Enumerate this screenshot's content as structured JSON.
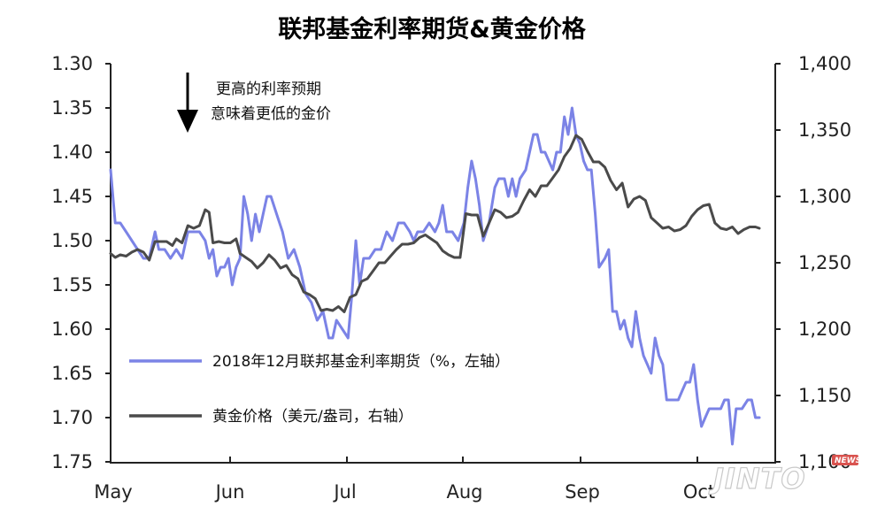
{
  "chart_data": {
    "type": "line",
    "title": "联邦基金利率期货&黄金价格",
    "annotation": [
      "更高的利率预期",
      "意味着更低的金价"
    ],
    "x_tick_labels": [
      "May",
      "Jun",
      "Jul",
      "Aug",
      "Sep",
      "Oct"
    ],
    "left_axis": {
      "range": [
        1.3,
        1.75
      ],
      "inverted": true,
      "tick_values": [
        1.3,
        1.35,
        1.4,
        1.45,
        1.5,
        1.55,
        1.6,
        1.65,
        1.7,
        1.75
      ],
      "tick_labels": [
        "1.30",
        "1.35",
        "1.40",
        "1.45",
        "1.50",
        "1.55",
        "1.60",
        "1.65",
        "1.70",
        "1.75"
      ]
    },
    "right_axis": {
      "range": [
        1100,
        1400
      ],
      "tick_values": [
        1100,
        1150,
        1200,
        1250,
        1300,
        1350,
        1400
      ],
      "tick_labels": [
        "1,100",
        "1,150",
        "1,200",
        "1,250",
        "1,300",
        "1,350",
        "1,400"
      ]
    },
    "grid": false,
    "legend_placement": "bottom-left",
    "series": [
      {
        "name": "2018年12月联邦基金利率期货（%，左轴）",
        "axis": "left",
        "color": "#7b83e6",
        "points": [
          [
            0.0,
            1.42
          ],
          [
            1.2,
            1.48
          ],
          [
            2.5,
            1.48
          ],
          [
            4.0,
            1.49
          ],
          [
            5.5,
            1.5
          ],
          [
            7.0,
            1.51
          ],
          [
            8.5,
            1.52
          ],
          [
            10.0,
            1.52
          ],
          [
            11.5,
            1.49
          ],
          [
            12.5,
            1.51
          ],
          [
            14.0,
            1.51
          ],
          [
            15.5,
            1.52
          ],
          [
            17.0,
            1.51
          ],
          [
            18.5,
            1.52
          ],
          [
            20.0,
            1.49
          ],
          [
            21.5,
            1.49
          ],
          [
            23.0,
            1.49
          ],
          [
            24.5,
            1.5
          ],
          [
            25.5,
            1.52
          ],
          [
            26.5,
            1.51
          ],
          [
            27.5,
            1.54
          ],
          [
            28.5,
            1.53
          ],
          [
            29.5,
            1.53
          ],
          [
            30.5,
            1.52
          ],
          [
            31.5,
            1.55
          ],
          [
            32.5,
            1.53
          ],
          [
            33.5,
            1.52
          ],
          [
            34.5,
            1.45
          ],
          [
            35.5,
            1.47
          ],
          [
            36.5,
            1.5
          ],
          [
            37.5,
            1.47
          ],
          [
            38.5,
            1.49
          ],
          [
            39.5,
            1.47
          ],
          [
            40.5,
            1.45
          ],
          [
            41.5,
            1.45
          ],
          [
            43.0,
            1.47
          ],
          [
            44.5,
            1.49
          ],
          [
            46.0,
            1.52
          ],
          [
            47.5,
            1.51
          ],
          [
            49.0,
            1.53
          ],
          [
            50.5,
            1.56
          ],
          [
            52.0,
            1.57
          ],
          [
            53.5,
            1.59
          ],
          [
            55.0,
            1.58
          ],
          [
            56.5,
            1.61
          ],
          [
            57.5,
            1.61
          ],
          [
            58.5,
            1.59
          ],
          [
            60.0,
            1.6
          ],
          [
            61.5,
            1.61
          ],
          [
            62.5,
            1.56
          ],
          [
            63.5,
            1.5
          ],
          [
            64.5,
            1.55
          ],
          [
            65.5,
            1.52
          ],
          [
            67.0,
            1.52
          ],
          [
            68.5,
            1.51
          ],
          [
            70.0,
            1.51
          ],
          [
            71.5,
            1.49
          ],
          [
            73.0,
            1.5
          ],
          [
            74.5,
            1.48
          ],
          [
            76.0,
            1.48
          ],
          [
            77.5,
            1.49
          ],
          [
            78.5,
            1.5
          ],
          [
            79.5,
            1.49
          ],
          [
            81.0,
            1.49
          ],
          [
            82.5,
            1.48
          ],
          [
            84.0,
            1.49
          ],
          [
            85.0,
            1.48
          ],
          [
            86.0,
            1.46
          ],
          [
            87.0,
            1.49
          ],
          [
            88.5,
            1.49
          ],
          [
            90.0,
            1.5
          ],
          [
            91.5,
            1.48
          ],
          [
            92.5,
            1.44
          ],
          [
            93.5,
            1.41
          ],
          [
            94.5,
            1.43
          ],
          [
            95.5,
            1.46
          ],
          [
            96.5,
            1.5
          ],
          [
            98.0,
            1.48
          ],
          [
            99.5,
            1.44
          ],
          [
            100.5,
            1.43
          ],
          [
            102.0,
            1.43
          ],
          [
            103.0,
            1.45
          ],
          [
            104.0,
            1.43
          ],
          [
            105.0,
            1.45
          ],
          [
            106.0,
            1.43
          ],
          [
            107.5,
            1.42
          ],
          [
            108.5,
            1.4
          ],
          [
            109.5,
            1.38
          ],
          [
            110.5,
            1.38
          ],
          [
            111.5,
            1.4
          ],
          [
            112.5,
            1.4
          ],
          [
            113.5,
            1.41
          ],
          [
            114.5,
            1.42
          ],
          [
            115.5,
            1.4
          ],
          [
            116.5,
            1.4
          ],
          [
            117.5,
            1.36
          ],
          [
            118.5,
            1.38
          ],
          [
            119.5,
            1.35
          ],
          [
            120.5,
            1.38
          ],
          [
            121.5,
            1.39
          ],
          [
            122.5,
            1.41
          ],
          [
            123.5,
            1.42
          ],
          [
            124.5,
            1.42
          ],
          [
            125.5,
            1.47
          ],
          [
            126.5,
            1.53
          ],
          [
            128.0,
            1.52
          ],
          [
            129.0,
            1.51
          ],
          [
            130.0,
            1.58
          ],
          [
            131.0,
            1.58
          ],
          [
            132.0,
            1.6
          ],
          [
            133.0,
            1.59
          ],
          [
            134.0,
            1.61
          ],
          [
            135.0,
            1.62
          ],
          [
            136.0,
            1.58
          ],
          [
            137.0,
            1.61
          ],
          [
            138.0,
            1.63
          ],
          [
            139.0,
            1.64
          ],
          [
            140.0,
            1.65
          ],
          [
            141.0,
            1.61
          ],
          [
            142.0,
            1.63
          ],
          [
            143.0,
            1.64
          ],
          [
            144.0,
            1.68
          ],
          [
            145.0,
            1.68
          ],
          [
            146.0,
            1.68
          ],
          [
            147.0,
            1.68
          ],
          [
            148.0,
            1.67
          ],
          [
            149.0,
            1.66
          ],
          [
            150.0,
            1.66
          ],
          [
            151.0,
            1.64
          ],
          [
            152.0,
            1.68
          ],
          [
            153.0,
            1.71
          ],
          [
            154.0,
            1.7
          ],
          [
            155.0,
            1.69
          ],
          [
            156.0,
            1.69
          ],
          [
            157.0,
            1.69
          ],
          [
            158.0,
            1.69
          ],
          [
            159.0,
            1.68
          ],
          [
            160.0,
            1.68
          ],
          [
            161.0,
            1.73
          ],
          [
            162.0,
            1.69
          ],
          [
            163.5,
            1.69
          ],
          [
            165.0,
            1.68
          ],
          [
            166.0,
            1.68
          ],
          [
            167.0,
            1.7
          ],
          [
            168.0,
            1.7
          ]
        ]
      },
      {
        "name": "黄金价格（美元/盎司，右轴）",
        "axis": "right",
        "color": "#4a4a4a",
        "points": [
          [
            0.0,
            1257
          ],
          [
            1.2,
            1254
          ],
          [
            2.5,
            1256
          ],
          [
            4.0,
            1255
          ],
          [
            5.5,
            1258
          ],
          [
            7.0,
            1260
          ],
          [
            8.5,
            1258
          ],
          [
            10.0,
            1252
          ],
          [
            11.5,
            1266
          ],
          [
            13.0,
            1266
          ],
          [
            14.5,
            1266
          ],
          [
            16.0,
            1263
          ],
          [
            17.0,
            1268
          ],
          [
            18.5,
            1265
          ],
          [
            20.0,
            1278
          ],
          [
            21.5,
            1276
          ],
          [
            23.0,
            1278
          ],
          [
            24.5,
            1290
          ],
          [
            25.5,
            1288
          ],
          [
            26.5,
            1265
          ],
          [
            28.0,
            1266
          ],
          [
            29.5,
            1265
          ],
          [
            31.0,
            1265
          ],
          [
            32.5,
            1268
          ],
          [
            33.5,
            1257
          ],
          [
            35.0,
            1254
          ],
          [
            36.5,
            1251
          ],
          [
            38.0,
            1246
          ],
          [
            39.5,
            1250
          ],
          [
            41.0,
            1256
          ],
          [
            42.5,
            1252
          ],
          [
            44.0,
            1246
          ],
          [
            45.5,
            1248
          ],
          [
            47.0,
            1241
          ],
          [
            48.5,
            1238
          ],
          [
            50.0,
            1228
          ],
          [
            51.5,
            1226
          ],
          [
            53.0,
            1223
          ],
          [
            54.5,
            1214
          ],
          [
            56.0,
            1215
          ],
          [
            57.5,
            1214
          ],
          [
            59.0,
            1217
          ],
          [
            60.5,
            1213
          ],
          [
            62.0,
            1224
          ],
          [
            63.5,
            1226
          ],
          [
            65.0,
            1236
          ],
          [
            66.5,
            1238
          ],
          [
            68.0,
            1244
          ],
          [
            69.5,
            1250
          ],
          [
            71.0,
            1250
          ],
          [
            72.5,
            1255
          ],
          [
            74.0,
            1260
          ],
          [
            75.5,
            1264
          ],
          [
            77.0,
            1264
          ],
          [
            78.5,
            1265
          ],
          [
            80.0,
            1269
          ],
          [
            81.5,
            1271
          ],
          [
            83.0,
            1268
          ],
          [
            84.5,
            1265
          ],
          [
            86.0,
            1259
          ],
          [
            87.5,
            1256
          ],
          [
            89.0,
            1254
          ],
          [
            90.5,
            1254
          ],
          [
            92.0,
            1287
          ],
          [
            93.5,
            1286
          ],
          [
            95.0,
            1286
          ],
          [
            96.5,
            1270
          ],
          [
            98.0,
            1280
          ],
          [
            99.5,
            1290
          ],
          [
            101.0,
            1288
          ],
          [
            102.5,
            1284
          ],
          [
            104.0,
            1285
          ],
          [
            105.5,
            1288
          ],
          [
            107.0,
            1297
          ],
          [
            108.5,
            1305
          ],
          [
            110.0,
            1300
          ],
          [
            111.5,
            1308
          ],
          [
            113.0,
            1308
          ],
          [
            114.5,
            1314
          ],
          [
            116.0,
            1320
          ],
          [
            117.5,
            1330
          ],
          [
            119.0,
            1336
          ],
          [
            120.5,
            1346
          ],
          [
            122.0,
            1343
          ],
          [
            123.5,
            1334
          ],
          [
            125.0,
            1326
          ],
          [
            126.5,
            1326
          ],
          [
            128.0,
            1322
          ],
          [
            129.5,
            1312
          ],
          [
            131.0,
            1305
          ],
          [
            132.5,
            1310
          ],
          [
            134.0,
            1292
          ],
          [
            135.5,
            1298
          ],
          [
            137.0,
            1300
          ],
          [
            138.5,
            1297
          ],
          [
            140.0,
            1284
          ],
          [
            141.5,
            1280
          ],
          [
            143.0,
            1276
          ],
          [
            144.5,
            1277
          ],
          [
            146.0,
            1274
          ],
          [
            147.5,
            1275
          ],
          [
            149.0,
            1278
          ],
          [
            150.5,
            1285
          ],
          [
            152.0,
            1290
          ],
          [
            153.5,
            1293
          ],
          [
            155.0,
            1294
          ],
          [
            156.5,
            1280
          ],
          [
            158.0,
            1276
          ],
          [
            159.5,
            1275
          ],
          [
            161.0,
            1277
          ],
          [
            162.5,
            1272
          ],
          [
            164.0,
            1275
          ],
          [
            165.5,
            1277
          ],
          [
            167.0,
            1277
          ],
          [
            168.0,
            1276
          ]
        ]
      }
    ]
  }
}
